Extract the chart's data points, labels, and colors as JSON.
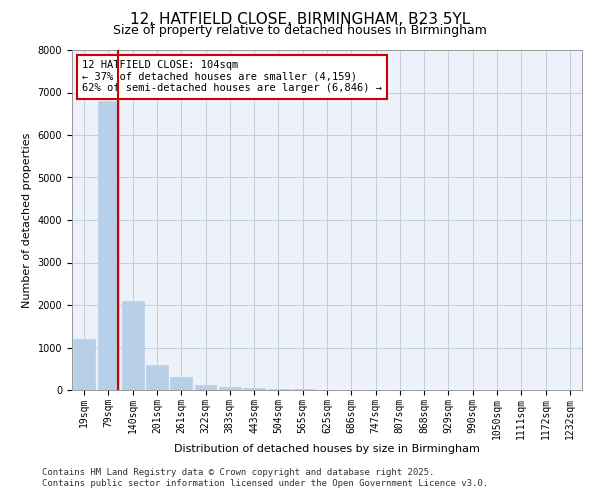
{
  "title1": "12, HATFIELD CLOSE, BIRMINGHAM, B23 5YL",
  "title2": "Size of property relative to detached houses in Birmingham",
  "xlabel": "Distribution of detached houses by size in Birmingham",
  "ylabel": "Number of detached properties",
  "categories": [
    "19sqm",
    "79sqm",
    "140sqm",
    "201sqm",
    "261sqm",
    "322sqm",
    "383sqm",
    "443sqm",
    "504sqm",
    "565sqm",
    "625sqm",
    "686sqm",
    "747sqm",
    "807sqm",
    "868sqm",
    "929sqm",
    "990sqm",
    "1050sqm",
    "1111sqm",
    "1172sqm",
    "1232sqm"
  ],
  "values": [
    1200,
    6800,
    2100,
    600,
    300,
    120,
    80,
    50,
    30,
    15,
    10,
    5,
    3,
    2,
    1,
    1,
    1,
    0,
    0,
    0,
    0
  ],
  "bar_color": "#b8cfe8",
  "bar_edgecolor": "#b8cfe8",
  "vline_color": "#cc0000",
  "annotation_text": "12 HATFIELD CLOSE: 104sqm\n← 37% of detached houses are smaller (4,159)\n62% of semi-detached houses are larger (6,846) →",
  "annotation_box_color": "#ffffff",
  "annotation_box_edgecolor": "#cc0000",
  "ylim": [
    0,
    8000
  ],
  "yticks": [
    0,
    1000,
    2000,
    3000,
    4000,
    5000,
    6000,
    7000,
    8000
  ],
  "background_color": "#edf2fa",
  "footer": "Contains HM Land Registry data © Crown copyright and database right 2025.\nContains public sector information licensed under the Open Government Licence v3.0.",
  "title1_fontsize": 11,
  "title2_fontsize": 9,
  "xlabel_fontsize": 8,
  "ylabel_fontsize": 8,
  "tick_fontsize": 7,
  "annotation_fontsize": 7.5,
  "footer_fontsize": 6.5
}
